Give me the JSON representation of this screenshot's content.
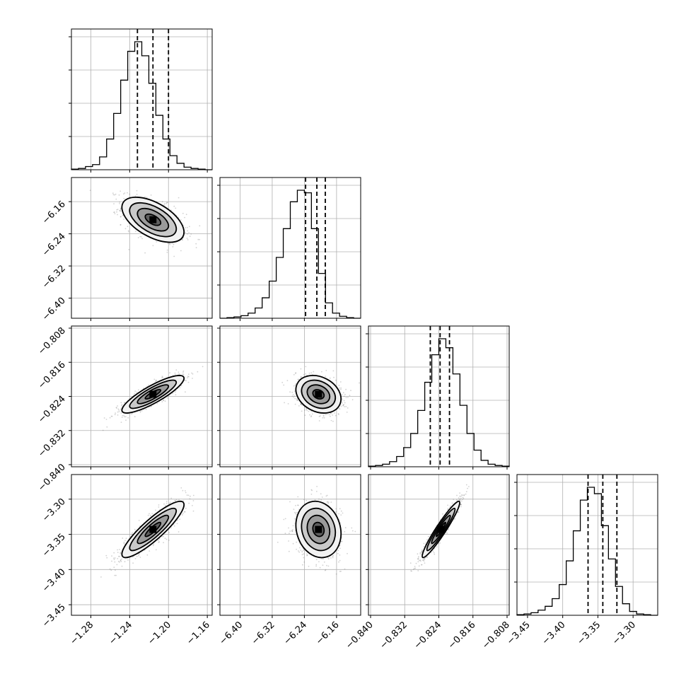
{
  "chart_data": {
    "type": "corner",
    "parameters": [
      {
        "range": [
          -1.3,
          -1.155
        ],
        "ticks": [
          -1.28,
          -1.24,
          -1.2,
          -1.16
        ],
        "tick_labels": [
          "−1.28",
          "−1.24",
          "−1.20",
          "−1.16"
        ],
        "center": -1.216,
        "sigma": 0.016,
        "quantiles": [
          -1.232,
          -1.216,
          -1.2
        ]
      },
      {
        "range": [
          -6.45,
          -6.1
        ],
        "ticks": [
          -6.4,
          -6.32,
          -6.24,
          -6.16
        ],
        "tick_labels": [
          "−6.40",
          "−6.32",
          "−6.24",
          "−6.16"
        ],
        "center": -6.205,
        "sigma": 0.028,
        "quantiles": [
          -6.237,
          -6.209,
          -6.188
        ]
      },
      {
        "range": [
          -0.8405,
          -0.8075
        ],
        "ticks": [
          -0.84,
          -0.832,
          -0.824,
          -0.816,
          -0.808
        ],
        "tick_labels": [
          "−0.840",
          "−0.832",
          "−0.824",
          "−0.816",
          "−0.808"
        ],
        "center": -0.8235,
        "sigma": 0.0022,
        "quantiles": [
          -0.826,
          -0.8237,
          -0.8215
        ]
      },
      {
        "range": [
          -3.465,
          -3.265
        ],
        "ticks": [
          -3.45,
          -3.4,
          -3.35,
          -3.3
        ],
        "tick_labels": [
          "−3.45",
          "−3.40",
          "−3.35",
          "−3.30"
        ],
        "center": -3.343,
        "sigma": 0.02,
        "quantiles": [
          -3.364,
          -3.343,
          -3.323
        ]
      }
    ],
    "histograms": [
      {
        "param": 0,
        "bins": 20,
        "counts": [
          1,
          2,
          5,
          8,
          20,
          48,
          88,
          140,
          185,
          200,
          178,
          135,
          85,
          48,
          22,
          10,
          4,
          2,
          1,
          0
        ]
      },
      {
        "param": 1,
        "bins": 20,
        "counts": [
          0,
          1,
          2,
          4,
          8,
          16,
          32,
          58,
          95,
          140,
          182,
          200,
          196,
          140,
          70,
          24,
          8,
          3,
          1,
          0
        ]
      },
      {
        "param": 2,
        "bins": 20,
        "counts": [
          1,
          2,
          4,
          8,
          16,
          30,
          52,
          88,
          132,
          175,
          200,
          186,
          145,
          96,
          52,
          26,
          10,
          4,
          2,
          1
        ]
      },
      {
        "param": 3,
        "bins": 20,
        "counts": [
          1,
          2,
          4,
          8,
          14,
          26,
          48,
          85,
          132,
          180,
          200,
          190,
          140,
          88,
          45,
          18,
          6,
          2,
          1,
          0
        ]
      }
    ],
    "pairs": [
      {
        "x": 0,
        "y": 1,
        "correlation": -0.55
      },
      {
        "x": 0,
        "y": 2,
        "correlation": 0.85
      },
      {
        "x": 1,
        "y": 2,
        "correlation": -0.25
      },
      {
        "x": 0,
        "y": 3,
        "correlation": 0.88
      },
      {
        "x": 1,
        "y": 3,
        "correlation": -0.15
      },
      {
        "x": 2,
        "y": 3,
        "correlation": 0.95
      }
    ],
    "contour_levels": [
      0.5,
      1.0,
      1.5,
      2.0
    ],
    "grid": true,
    "colors": {
      "line": "#000000",
      "grid": "#b0b0b0",
      "points": "#7f7f7f"
    }
  }
}
